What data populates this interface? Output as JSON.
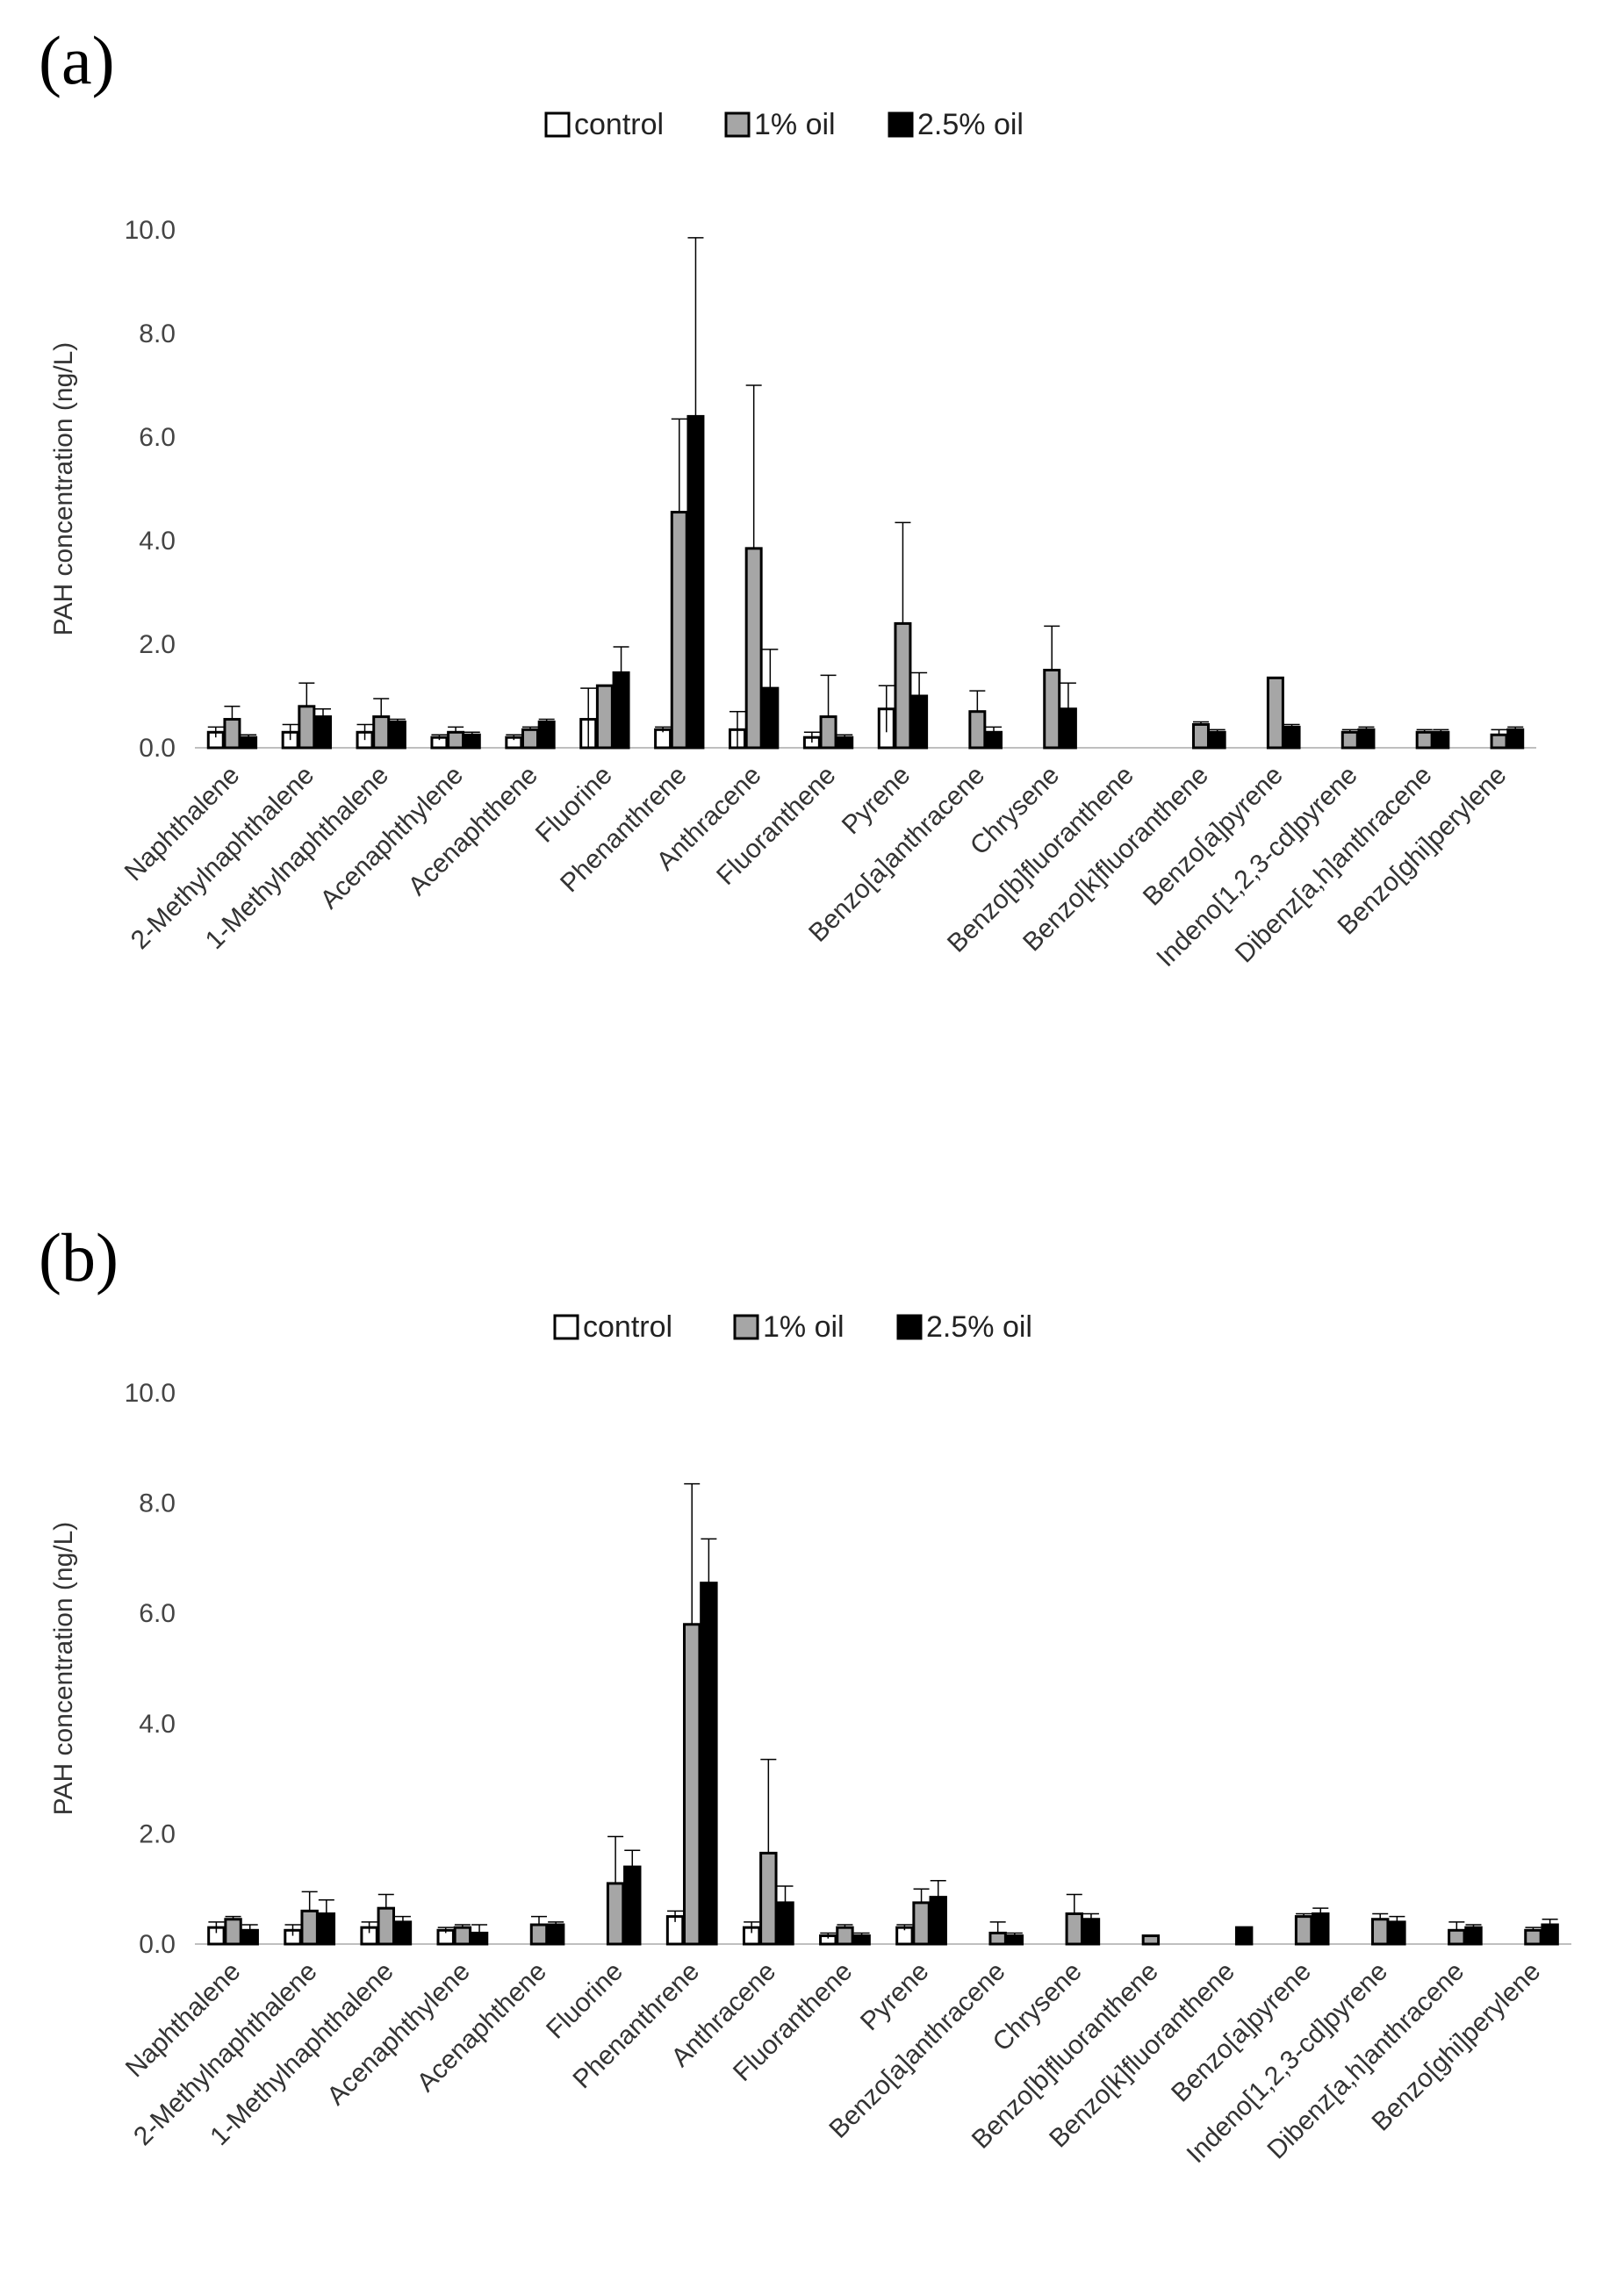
{
  "chart_data": [
    {
      "panel_label": "(a)",
      "type": "bar",
      "ylabel": "PAH concentration (ng/L)",
      "ylim": [
        0,
        10
      ],
      "yticks": [
        "0.0",
        "2.0",
        "4.0",
        "6.0",
        "8.0",
        "10.0"
      ],
      "legend_position": "top-center",
      "categories": [
        "Naphthalene",
        "2-Methylnaphthalene",
        "1-Methylnaphthalene",
        "Acenaphthylene",
        "Acenaphthene",
        "Fluorine",
        "Phenanthrene",
        "Anthracene",
        "Fluoranthene",
        "Pyrene",
        "Benzo[a]anthracene",
        "Chrysene",
        "Benzo[b]fluoranthene",
        "Benzo[k]fluoranthene",
        "Benzo[a]pyrene",
        "Indeno[1,2,3-cd]pyrene",
        "Dibenz[a,h]anthracene",
        "Benzo[ghi]perylene"
      ],
      "series": [
        {
          "name": "control",
          "color": "#ffffff",
          "values": [
            0.3,
            0.3,
            0.3,
            0.2,
            0.2,
            0.55,
            0.35,
            0.35,
            0.2,
            0.75,
            0,
            0,
            0,
            0,
            0,
            0,
            0,
            0
          ],
          "errors": [
            0.1,
            0.15,
            0.15,
            0.05,
            0.05,
            0.6,
            0.05,
            0.35,
            0.1,
            0.45,
            0,
            0,
            0,
            0,
            0,
            0,
            0,
            0
          ]
        },
        {
          "name": "1% oil",
          "color": "#a6a6a6",
          "values": [
            0.55,
            0.8,
            0.6,
            0.3,
            0.35,
            1.2,
            4.55,
            3.85,
            0.6,
            2.4,
            0.7,
            1.5,
            0,
            0.45,
            1.35,
            0.3,
            0.3,
            0.25
          ],
          "errors": [
            0.25,
            0.45,
            0.35,
            0.1,
            0.05,
            0,
            1.8,
            3.15,
            0.8,
            1.95,
            0.4,
            0.85,
            0,
            0.05,
            0,
            0.05,
            0.05,
            0.1
          ],
          "error_direction": "up"
        },
        {
          "name": "2.5% oil",
          "color": "#000000",
          "values": [
            0.2,
            0.6,
            0.5,
            0.25,
            0.5,
            1.45,
            6.4,
            1.15,
            0.2,
            1.0,
            0.3,
            0.75,
            0,
            0.3,
            0.4,
            0.35,
            0.3,
            0.35
          ],
          "errors": [
            0.05,
            0.15,
            0.05,
            0.05,
            0.05,
            0.5,
            3.45,
            0.75,
            0.05,
            0.45,
            0.1,
            0.5,
            0,
            0.05,
            0.05,
            0.05,
            0.05,
            0.05
          ]
        }
      ]
    },
    {
      "panel_label": "(b)",
      "type": "bar",
      "ylabel": "PAH concentration (ng/L)",
      "ylim": [
        0,
        10
      ],
      "yticks": [
        "0.0",
        "2.0",
        "4.0",
        "6.0",
        "8.0",
        "10.0"
      ],
      "legend_position": "top-center",
      "categories": [
        "Naphthalene",
        "2-Methylnaphthalene",
        "1-Methylnaphthalene",
        "Acenaphthylene",
        "Acenaphthene",
        "Fluorine",
        "Phenanthrene",
        "Anthracene",
        "Fluoranthene",
        "Pyrene",
        "Benzo[a]anthracene",
        "Chrysene",
        "Benzo[b]fluoranthene",
        "Benzo[k]fluoranthene",
        "Benzo[a]pyrene",
        "Indeno[1,2,3-cd]pyrene",
        "Dibenz[a,h]anthracene",
        "Benzo[ghi]perylene"
      ],
      "series": [
        {
          "name": "control",
          "color": "#ffffff",
          "values": [
            0.3,
            0.25,
            0.3,
            0.25,
            0,
            0,
            0.5,
            0.3,
            0.15,
            0.3,
            0,
            0,
            0,
            0,
            0,
            0,
            0,
            0
          ],
          "errors": [
            0.1,
            0.1,
            0.1,
            0.05,
            0,
            0,
            0.1,
            0.1,
            0.05,
            0.05,
            0,
            0,
            0,
            0,
            0,
            0,
            0,
            0
          ]
        },
        {
          "name": "1% oil",
          "color": "#a6a6a6",
          "values": [
            0.45,
            0.6,
            0.65,
            0.3,
            0.35,
            1.1,
            5.8,
            1.65,
            0.3,
            0.75,
            0.2,
            0.55,
            0.15,
            0,
            0.5,
            0.45,
            0.25,
            0.25
          ],
          "errors": [
            0.05,
            0.35,
            0.25,
            0.05,
            0.15,
            0.85,
            2.55,
            1.7,
            0.05,
            0.25,
            0.2,
            0.35,
            0,
            0,
            0.05,
            0.1,
            0.15,
            0.05
          ],
          "error_direction": "up"
        },
        {
          "name": "2.5% oil",
          "color": "#000000",
          "values": [
            0.25,
            0.55,
            0.4,
            0.2,
            0.35,
            1.4,
            6.55,
            0.75,
            0.15,
            0.85,
            0.15,
            0.45,
            0,
            0.3,
            0.55,
            0.4,
            0.3,
            0.35
          ],
          "errors": [
            0.1,
            0.25,
            0.1,
            0.15,
            0.05,
            0.3,
            0.8,
            0.3,
            0.05,
            0.3,
            0.05,
            0.1,
            0,
            0,
            0.1,
            0.1,
            0.05,
            0.1
          ]
        }
      ]
    }
  ]
}
